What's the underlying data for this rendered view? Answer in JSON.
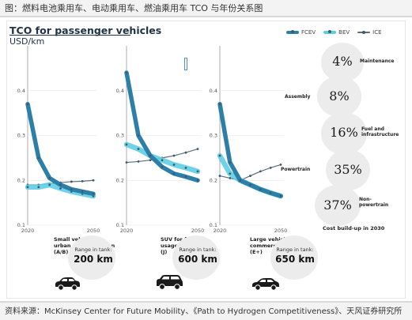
{
  "caption": "图：燃料电池乘用车、电动乘用车、燃油乘用车 TCO 与年份关系图",
  "source": "资料来源：McKinsey Center for Future Mobility、《Path to Hydrogen Competitiveness》、天风证券研究所",
  "colors": {
    "fcev": "#2e7fa8",
    "bev": "#5ecde6",
    "ice": "#5a6e7c",
    "title": "#1f3246"
  },
  "chart_data": [
    {
      "type": "line",
      "title": "TCO for passenger vehicles",
      "ylabel": "USD/km",
      "x": [
        2020,
        2025,
        2030,
        2035,
        2040,
        2045,
        2050
      ],
      "ylim": [
        0.1,
        0.5
      ],
      "yticks": [
        "0.1",
        "0.2",
        "0.3",
        "0.4"
      ],
      "xticks": [
        "2020",
        "2050"
      ],
      "series": [
        {
          "name": "FCEV",
          "values": [
            0.37,
            0.25,
            0.205,
            0.19,
            0.18,
            0.175,
            0.17
          ]
        },
        {
          "name": "BEV",
          "values": [
            0.185,
            0.185,
            0.19,
            0.182,
            0.175,
            0.17,
            0.165
          ]
        },
        {
          "name": "ICE",
          "values": [
            0.19,
            0.19,
            0.193,
            0.195,
            0.197,
            0.198,
            0.2
          ]
        }
      ],
      "vehicle": "Small vehicle for urban transportation",
      "segment": "(A/B)",
      "range_label": "Range in tank:",
      "range": "200 km"
    },
    {
      "type": "line",
      "x": [
        2020,
        2025,
        2030,
        2035,
        2040,
        2045,
        2050
      ],
      "ylim": [
        0.1,
        0.5
      ],
      "yticks": [
        "0.1",
        "0.2",
        "0.3",
        "0.4"
      ],
      "xticks": [
        "2020",
        "2050"
      ],
      "series": [
        {
          "name": "FCEV",
          "values": [
            0.44,
            0.3,
            0.255,
            0.23,
            0.215,
            0.208,
            0.2
          ]
        },
        {
          "name": "BEV",
          "values": [
            0.28,
            0.27,
            0.255,
            0.245,
            0.235,
            0.228,
            0.22
          ]
        },
        {
          "name": "ICE",
          "values": [
            0.24,
            0.242,
            0.245,
            0.25,
            0.255,
            0.262,
            0.27
          ]
        }
      ],
      "vehicle": "SUV for family usage",
      "segment": "(J)",
      "range_label": "Range in tank:",
      "range": "600 km"
    },
    {
      "type": "line",
      "x": [
        2020,
        2025,
        2030,
        2035,
        2040,
        2045,
        2050
      ],
      "ylim": [
        0.1,
        0.5
      ],
      "yticks": [
        "0.1",
        "0.2",
        "0.3",
        "0.4"
      ],
      "xticks": [
        "2020",
        "2050"
      ],
      "series": [
        {
          "name": "FCEV",
          "values": [
            0.37,
            0.24,
            0.2,
            0.19,
            0.18,
            0.172,
            0.165
          ]
        },
        {
          "name": "BEV",
          "values": [
            0.255,
            0.215,
            0.2,
            0.19,
            0.18,
            0.172,
            0.165
          ]
        },
        {
          "name": "ICE",
          "values": [
            0.21,
            0.205,
            0.2,
            0.21,
            0.22,
            0.228,
            0.235
          ]
        }
      ],
      "vehicle": "Large vehicle for commercial usage",
      "segment": "(E+)",
      "range_label": "Range in tank:",
      "range": "650 km"
    }
  ],
  "cost_buildup": {
    "title": "Cost build-up in 2030",
    "items": [
      {
        "label": "Maintenance",
        "pct": "4%"
      },
      {
        "label": "Assembly",
        "pct": "8%"
      },
      {
        "label": "Fuel and infrastructure",
        "pct": "16%"
      },
      {
        "label": "Powertrain",
        "pct": "35%"
      },
      {
        "label": "Non-powertrain",
        "pct": "37%"
      }
    ]
  }
}
